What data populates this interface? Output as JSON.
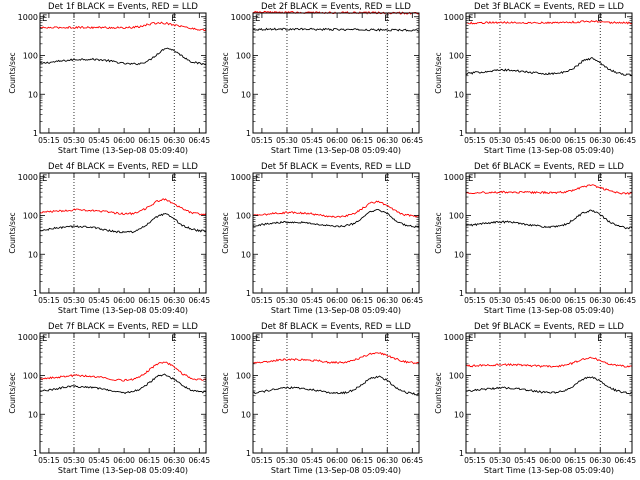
{
  "figure": {
    "series_colors": {
      "events": "#000000",
      "lld": "#ff0000"
    },
    "marker_label": "E"
  },
  "chart_data": [
    {
      "type": "line",
      "title": "Det 1f BLACK = Events, RED = LLD",
      "xlabel": "Start Time (13-Sep-08 05:09:40)",
      "ylabel": "Counts/sec",
      "yscale": "log",
      "ylim": [
        1,
        1000
      ],
      "yticks": [
        "1",
        "10",
        "100",
        "1000"
      ],
      "xticks": [
        "05:15",
        "05:30",
        "05:45",
        "06:00",
        "06:15",
        "06:30",
        "06:45"
      ],
      "x": [
        "05:10",
        "05:15",
        "05:20",
        "05:25",
        "05:30",
        "05:35",
        "05:40",
        "05:45",
        "05:50",
        "05:55",
        "06:00",
        "06:05",
        "06:10",
        "06:15",
        "06:20",
        "06:25",
        "06:30",
        "06:35",
        "06:40",
        "06:45",
        "06:48"
      ],
      "series": [
        {
          "name": "Events",
          "color": "#000000",
          "values": [
            62,
            66,
            70,
            74,
            78,
            80,
            80,
            78,
            74,
            68,
            62,
            60,
            62,
            75,
            110,
            160,
            135,
            95,
            70,
            62,
            60
          ]
        },
        {
          "name": "LLD",
          "color": "#ff0000",
          "values": [
            520,
            520,
            525,
            530,
            530,
            530,
            530,
            528,
            525,
            520,
            520,
            525,
            560,
            640,
            700,
            680,
            620,
            560,
            500,
            470,
            460
          ]
        }
      ]
    },
    {
      "type": "line",
      "title": "Det 2f BLACK = Events, RED = LLD",
      "xlabel": "Start Time (13-Sep-08 05:09:40)",
      "ylabel": "Counts/sec",
      "yscale": "log",
      "ylim": [
        1,
        1000
      ],
      "yticks": [
        "1",
        "10",
        "100",
        "1000"
      ],
      "xticks": [
        "05:15",
        "05:30",
        "05:45",
        "06:00",
        "06:15",
        "06:30",
        "06:45"
      ],
      "x": [
        "05:10",
        "05:15",
        "05:20",
        "05:25",
        "05:30",
        "05:35",
        "05:40",
        "05:45",
        "05:50",
        "05:55",
        "06:00",
        "06:05",
        "06:10",
        "06:15",
        "06:20",
        "06:25",
        "06:30",
        "06:35",
        "06:40",
        "06:45",
        "06:48"
      ],
      "series": [
        {
          "name": "Events",
          "color": "#000000",
          "values": [
            470,
            475,
            480,
            480,
            480,
            478,
            476,
            475,
            472,
            470,
            468,
            466,
            465,
            463,
            460,
            458,
            456,
            455,
            452,
            450,
            450
          ]
        },
        {
          "name": "LLD",
          "color": "#ff0000",
          "values": [
            1300,
            1300,
            1300,
            1295,
            1290,
            1290,
            1285,
            1280,
            1280,
            1275,
            1270,
            1270,
            1265,
            1260,
            1260,
            1255,
            1250,
            1250,
            1245,
            1240,
            1240
          ]
        }
      ]
    },
    {
      "type": "line",
      "title": "Det 3f BLACK = Events, RED = LLD",
      "xlabel": "Start Time (13-Sep-08 05:09:40)",
      "ylabel": "Counts/sec",
      "yscale": "log",
      "ylim": [
        1,
        1000
      ],
      "yticks": [
        "1",
        "10",
        "100",
        "1000"
      ],
      "xticks": [
        "05:15",
        "05:30",
        "05:45",
        "06:00",
        "06:15",
        "06:30",
        "06:45"
      ],
      "x": [
        "05:10",
        "05:15",
        "05:20",
        "05:25",
        "05:30",
        "05:35",
        "05:40",
        "05:45",
        "05:50",
        "05:55",
        "06:00",
        "06:05",
        "06:10",
        "06:15",
        "06:20",
        "06:25",
        "06:30",
        "06:35",
        "06:40",
        "06:45",
        "06:48"
      ],
      "series": [
        {
          "name": "Events",
          "color": "#000000",
          "values": [
            34,
            36,
            38,
            40,
            42,
            42,
            40,
            38,
            36,
            34,
            34,
            35,
            38,
            50,
            75,
            85,
            65,
            45,
            36,
            32,
            32
          ]
        },
        {
          "name": "LLD",
          "color": "#ff0000",
          "values": [
            680,
            690,
            700,
            710,
            715,
            715,
            710,
            705,
            700,
            700,
            700,
            705,
            715,
            730,
            750,
            760,
            740,
            715,
            700,
            690,
            690
          ]
        }
      ]
    },
    {
      "type": "line",
      "title": "Det 4f BLACK = Events, RED = LLD",
      "xlabel": "Start Time (13-Sep-08 05:09:40)",
      "ylabel": "Counts/sec",
      "yscale": "log",
      "ylim": [
        1,
        1000
      ],
      "yticks": [
        "1",
        "10",
        "100",
        "1000"
      ],
      "xticks": [
        "05:15",
        "05:30",
        "05:45",
        "06:00",
        "06:15",
        "06:30",
        "06:45"
      ],
      "x": [
        "05:10",
        "05:15",
        "05:20",
        "05:25",
        "05:30",
        "05:35",
        "05:40",
        "05:45",
        "05:50",
        "05:55",
        "06:00",
        "06:05",
        "06:10",
        "06:15",
        "06:20",
        "06:25",
        "06:30",
        "06:35",
        "06:40",
        "06:45",
        "06:48"
      ],
      "series": [
        {
          "name": "Events",
          "color": "#000000",
          "values": [
            40,
            44,
            48,
            50,
            52,
            52,
            50,
            46,
            42,
            38,
            37,
            38,
            45,
            65,
            95,
            110,
            80,
            55,
            45,
            40,
            40
          ]
        },
        {
          "name": "LLD",
          "color": "#ff0000",
          "values": [
            120,
            125,
            130,
            135,
            140,
            140,
            135,
            130,
            125,
            115,
            110,
            112,
            130,
            170,
            240,
            260,
            200,
            150,
            120,
            110,
            110
          ]
        }
      ]
    },
    {
      "type": "line",
      "title": "Det 5f BLACK = Events, RED = LLD",
      "xlabel": "Start Time (13-Sep-08 05:09:40)",
      "ylabel": "Counts/sec",
      "yscale": "log",
      "ylim": [
        1,
        1000
      ],
      "yticks": [
        "1",
        "10",
        "100",
        "1000"
      ],
      "xticks": [
        "05:15",
        "05:30",
        "05:45",
        "06:00",
        "06:15",
        "06:30",
        "06:45"
      ],
      "x": [
        "05:10",
        "05:15",
        "05:20",
        "05:25",
        "05:30",
        "05:35",
        "05:40",
        "05:45",
        "05:50",
        "05:55",
        "06:00",
        "06:05",
        "06:10",
        "06:15",
        "06:20",
        "06:25",
        "06:30",
        "06:35",
        "06:40",
        "06:45",
        "06:48"
      ],
      "series": [
        {
          "name": "Events",
          "color": "#000000",
          "values": [
            55,
            58,
            62,
            66,
            68,
            68,
            66,
            62,
            58,
            54,
            52,
            54,
            62,
            85,
            125,
            140,
            110,
            75,
            58,
            52,
            50
          ]
        },
        {
          "name": "LLD",
          "color": "#ff0000",
          "values": [
            100,
            104,
            110,
            115,
            120,
            120,
            115,
            110,
            102,
            96,
            94,
            96,
            110,
            150,
            210,
            230,
            180,
            130,
            105,
            98,
            95
          ]
        }
      ]
    },
    {
      "type": "line",
      "title": "Det 6f BLACK = Events, RED = LLD",
      "xlabel": "Start Time (13-Sep-08 05:09:40)",
      "ylabel": "Counts/sec",
      "yscale": "log",
      "ylim": [
        1,
        1000
      ],
      "yticks": [
        "1",
        "10",
        "100",
        "1000"
      ],
      "xticks": [
        "05:15",
        "05:30",
        "05:45",
        "06:00",
        "06:15",
        "06:30",
        "06:45"
      ],
      "x": [
        "05:10",
        "05:15",
        "05:20",
        "05:25",
        "05:30",
        "05:35",
        "05:40",
        "05:45",
        "05:50",
        "05:55",
        "06:00",
        "06:05",
        "06:10",
        "06:15",
        "06:20",
        "06:25",
        "06:30",
        "06:35",
        "06:40",
        "06:45",
        "06:48"
      ],
      "series": [
        {
          "name": "Events",
          "color": "#000000",
          "values": [
            55,
            58,
            62,
            66,
            68,
            68,
            65,
            60,
            56,
            52,
            50,
            52,
            60,
            85,
            120,
            135,
            105,
            70,
            55,
            48,
            48
          ]
        },
        {
          "name": "LLD",
          "color": "#ff0000",
          "values": [
            390,
            390,
            390,
            395,
            400,
            400,
            398,
            395,
            392,
            390,
            390,
            392,
            410,
            460,
            560,
            600,
            520,
            440,
            390,
            370,
            370
          ]
        }
      ]
    },
    {
      "type": "line",
      "title": "Det 7f BLACK = Events, RED = LLD",
      "xlabel": "Start Time (13-Sep-08 05:09:40)",
      "ylabel": "Counts/sec",
      "yscale": "log",
      "ylim": [
        1,
        1000
      ],
      "yticks": [
        "1",
        "10",
        "100",
        "1000"
      ],
      "xticks": [
        "05:15",
        "05:30",
        "05:45",
        "06:00",
        "06:15",
        "06:30",
        "06:45"
      ],
      "x": [
        "05:10",
        "05:15",
        "05:20",
        "05:25",
        "05:30",
        "05:35",
        "05:40",
        "05:45",
        "05:50",
        "05:55",
        "06:00",
        "06:05",
        "06:10",
        "06:15",
        "06:20",
        "06:25",
        "06:30",
        "06:35",
        "06:40",
        "06:45",
        "06:48"
      ],
      "series": [
        {
          "name": "Events",
          "color": "#000000",
          "values": [
            40,
            42,
            46,
            50,
            52,
            52,
            50,
            47,
            43,
            38,
            36,
            38,
            45,
            65,
            95,
            105,
            80,
            55,
            42,
            38,
            37
          ]
        },
        {
          "name": "LLD",
          "color": "#ff0000",
          "values": [
            80,
            85,
            90,
            95,
            100,
            100,
            95,
            90,
            85,
            78,
            75,
            78,
            95,
            140,
            200,
            220,
            170,
            110,
            85,
            78,
            78
          ]
        }
      ]
    },
    {
      "type": "line",
      "title": "Det 8f BLACK = Events, RED = LLD",
      "xlabel": "Start Time (13-Sep-08 05:09:40)",
      "ylabel": "Counts/sec",
      "yscale": "log",
      "ylim": [
        1,
        1000
      ],
      "yticks": [
        "1",
        "10",
        "100",
        "1000"
      ],
      "xticks": [
        "05:15",
        "05:30",
        "05:45",
        "06:00",
        "06:15",
        "06:30",
        "06:45"
      ],
      "x": [
        "05:10",
        "05:15",
        "05:20",
        "05:25",
        "05:30",
        "05:35",
        "05:40",
        "05:45",
        "05:50",
        "05:55",
        "06:00",
        "06:05",
        "06:10",
        "06:15",
        "06:20",
        "06:25",
        "06:30",
        "06:35",
        "06:40",
        "06:45",
        "06:48"
      ],
      "series": [
        {
          "name": "Events",
          "color": "#000000",
          "values": [
            36,
            38,
            42,
            45,
            48,
            48,
            46,
            43,
            40,
            36,
            35,
            36,
            42,
            60,
            85,
            95,
            75,
            50,
            38,
            34,
            33
          ]
        },
        {
          "name": "LLD",
          "color": "#ff0000",
          "values": [
            210,
            220,
            235,
            250,
            260,
            260,
            255,
            245,
            235,
            220,
            215,
            220,
            245,
            300,
            360,
            380,
            330,
            270,
            230,
            215,
            210
          ]
        }
      ]
    },
    {
      "type": "line",
      "title": "Det 9f BLACK = Events, RED = LLD",
      "xlabel": "Start Time (13-Sep-08 05:09:40)",
      "ylabel": "Counts/sec",
      "yscale": "log",
      "ylim": [
        1,
        1000
      ],
      "yticks": [
        "1",
        "10",
        "100",
        "1000"
      ],
      "xticks": [
        "05:15",
        "05:30",
        "05:45",
        "06:00",
        "06:15",
        "06:30",
        "06:45"
      ],
      "x": [
        "05:10",
        "05:15",
        "05:20",
        "05:25",
        "05:30",
        "05:35",
        "05:40",
        "05:45",
        "05:50",
        "05:55",
        "06:00",
        "06:05",
        "06:10",
        "06:15",
        "06:20",
        "06:25",
        "06:30",
        "06:35",
        "06:40",
        "06:45",
        "06:48"
      ],
      "series": [
        {
          "name": "Events",
          "color": "#000000",
          "values": [
            40,
            42,
            44,
            46,
            48,
            48,
            46,
            43,
            40,
            37,
            36,
            37,
            42,
            58,
            82,
            92,
            72,
            50,
            40,
            36,
            35
          ]
        },
        {
          "name": "LLD",
          "color": "#ff0000",
          "values": [
            175,
            178,
            182,
            186,
            190,
            190,
            187,
            183,
            178,
            172,
            170,
            172,
            185,
            220,
            270,
            290,
            245,
            200,
            180,
            172,
            170
          ]
        }
      ]
    }
  ]
}
